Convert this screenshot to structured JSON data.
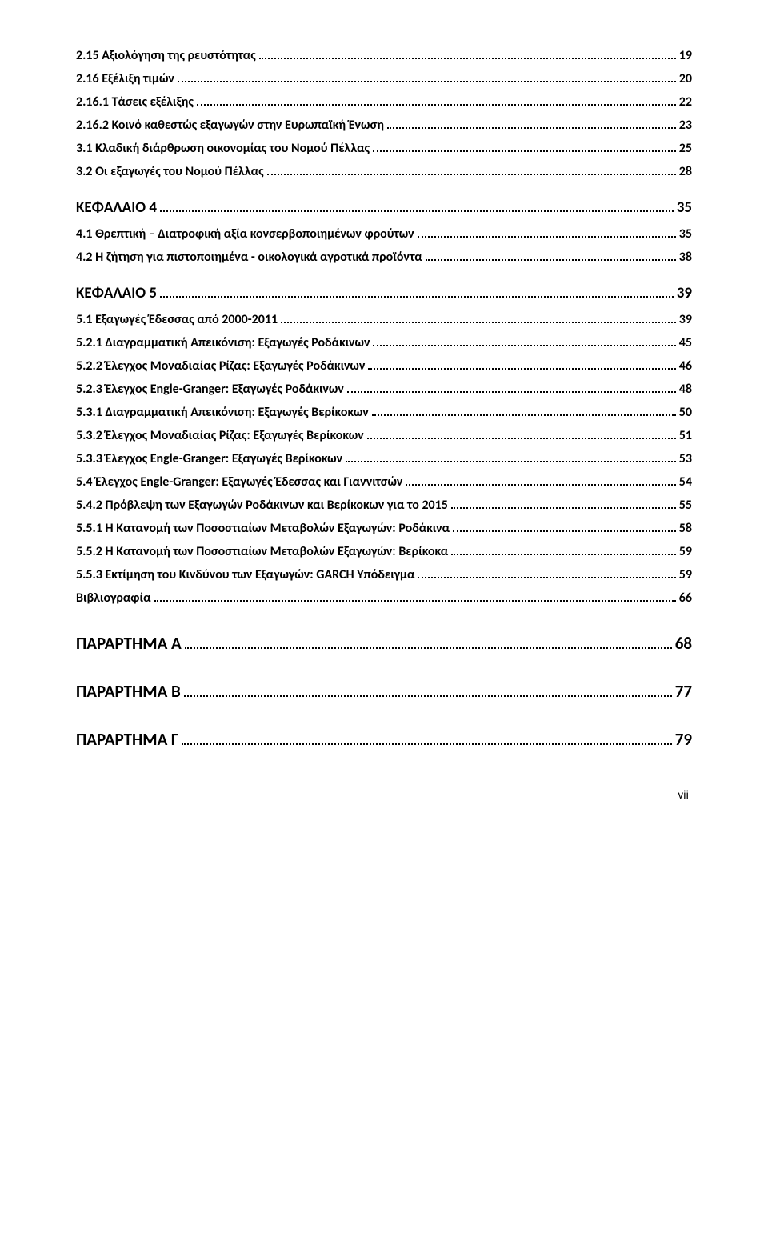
{
  "entries": [
    {
      "label": "2.15  Αξιολόγηση της ρευστότητας",
      "page": "19",
      "level": "item"
    },
    {
      "label": "2.16 Εξέλιξη τιμών",
      "page": "20",
      "level": "item"
    },
    {
      "label": "2.16.1 Τάσεις εξέλιξης",
      "page": "22",
      "level": "item"
    },
    {
      "label": "2.16.2  Κοινό καθεστώς εξαγωγών στην Ευρωπαϊκή Ένωση",
      "page": "23",
      "level": "item"
    },
    {
      "label": "3.1 Κλαδική διάρθρωση οικονομίας του Νομού Πέλλας",
      "page": "25",
      "level": "item"
    },
    {
      "label": "3.2 Οι εξαγωγές του Νομού Πέλλας",
      "page": "28",
      "level": "item"
    },
    {
      "label": "ΚΕΦΑΛΑΙΟ 4",
      "page": "35",
      "level": "chapter"
    },
    {
      "label": "4.1 Θρεπτική – Διατροφική αξία κονσερβοποιημένων φρούτων",
      "page": "35",
      "level": "item"
    },
    {
      "label": "4.2 Η   ζήτηση για πιστοποιημένα - οικολογικά αγροτικά προϊόντα",
      "page": "38",
      "level": "item"
    },
    {
      "label": "ΚΕΦΑΛΑΙΟ 5",
      "page": "39",
      "level": "chapter"
    },
    {
      "label": "5.1 Εξαγωγές Έδεσσας από 2000-2011",
      "page": "39",
      "level": "item"
    },
    {
      "label": "5.2.1 Διαγραμματική Απεικόνιση: Εξαγωγές Ροδάκινων",
      "page": "45",
      "level": "item"
    },
    {
      "label": "5.2.2 Έλεγχος Μοναδιαίας Ρίζας: Εξαγωγές Ροδάκινων",
      "page": "46",
      "level": "item"
    },
    {
      "label": "5.2.3 Έλεγχος Engle-Granger: Εξαγωγές Ροδάκινων",
      "page": "48",
      "level": "item"
    },
    {
      "label": "5.3.1 Διαγραμματική Απεικόνιση: Εξαγωγές Βερίκοκων",
      "page": "50",
      "level": "item"
    },
    {
      "label": "5.3.2 Έλεγχος Μοναδιαίας Ρίζας: Εξαγωγές Βερίκοκων",
      "page": "51",
      "level": "item"
    },
    {
      "label": "5.3.3 Έλεγχος Engle-Granger: Εξαγωγές Βερίκοκων",
      "page": "53",
      "level": "item"
    },
    {
      "label": "5.4 Έλεγχος Engle-Granger: Εξαγωγές Έδεσσας και Γιαννιτσών",
      "page": "54",
      "level": "item"
    },
    {
      "label": "5.4.2 Πρόβλεψη των Εξαγωγών Ροδάκινων και Βερίκοκων για το 2015",
      "page": "55",
      "level": "item"
    },
    {
      "label": "5.5.1 Η Κατανομή των Ποσοστιαίων Μεταβολών Εξαγωγών:  Ροδάκινα",
      "page": "58",
      "level": "item"
    },
    {
      "label": "5.5.2 Η Κατανομή των Ποσοστιαίων Μεταβολών Εξαγωγών:  Βερίκοκα",
      "page": "59",
      "level": "item"
    },
    {
      "label": "5.5.3 Εκτίμηση του Κινδύνου των Εξαγωγών: GARCH Υπόδειγμα",
      "page": "59",
      "level": "item"
    },
    {
      "label": "Βιβλιογραφία",
      "page": "66",
      "level": "item"
    },
    {
      "label": "ΠΑΡΑΡΤΗΜΑ Α",
      "page": "68",
      "level": "big"
    },
    {
      "label": "ΠΑΡΑΡΤΗΜΑ Β",
      "page": "77",
      "level": "big"
    },
    {
      "label": "ΠΑΡΑΡΤΗΜΑ Γ",
      "page": "79",
      "level": "big"
    }
  ],
  "footer": "vii"
}
